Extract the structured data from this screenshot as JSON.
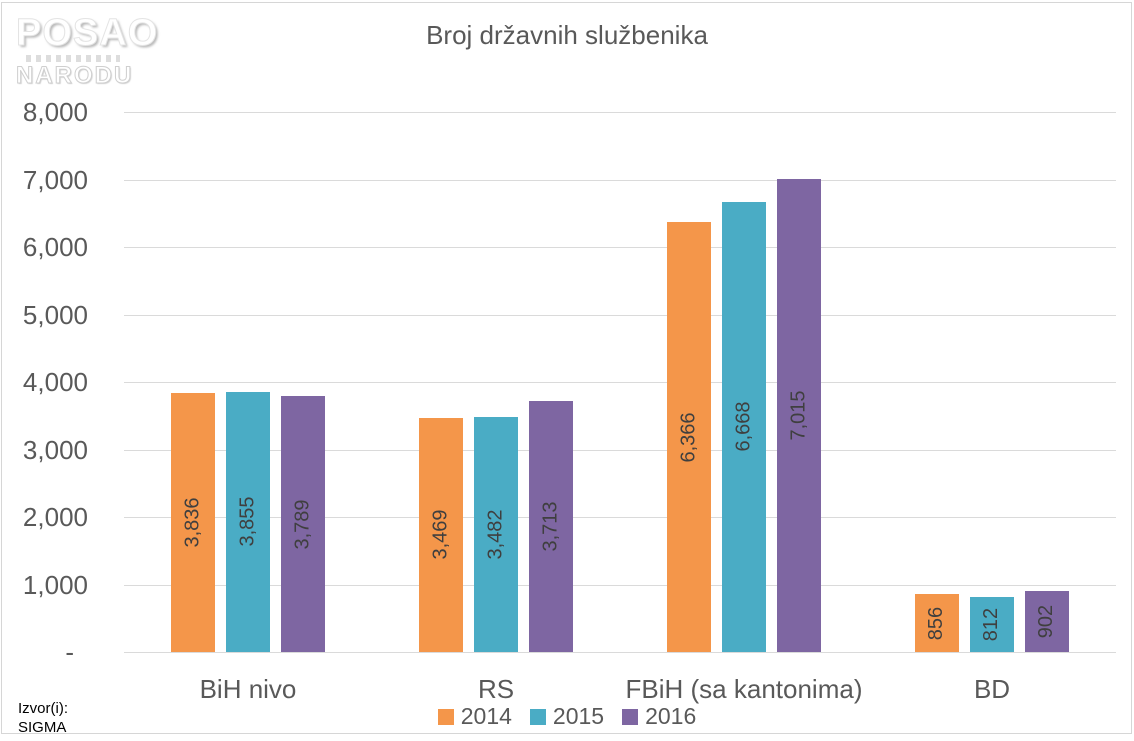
{
  "logo": {
    "line1": "POSAO",
    "line2": "NARODU"
  },
  "source": {
    "line1": "Izvor(i):",
    "line2": "SIGMA"
  },
  "chart_data": {
    "type": "bar",
    "title": "Broj državnih službenika",
    "categories": [
      "BiH nivo",
      "RS",
      "FBiH (sa kantonima)",
      "BD"
    ],
    "series": [
      {
        "name": "2014",
        "color": "#F4964A",
        "values": [
          3836,
          3469,
          6366,
          856
        ]
      },
      {
        "name": "2015",
        "color": "#4AACC5",
        "values": [
          3855,
          3482,
          6668,
          812
        ]
      },
      {
        "name": "2016",
        "color": "#7E66A2",
        "values": [
          3789,
          3713,
          7015,
          902
        ]
      }
    ],
    "data_labels": [
      [
        "3,836",
        "3,469",
        "6,366",
        "856"
      ],
      [
        "3,855",
        "3,482",
        "6,668",
        "812"
      ],
      [
        "3,789",
        "3,713",
        "7,015",
        "902"
      ]
    ],
    "xlabel": "",
    "ylabel": "",
    "ylim": [
      0,
      8000
    ],
    "ytick_step": 1000,
    "ytick_labels": [
      "-",
      "1,000",
      "2,000",
      "3,000",
      "4,000",
      "5,000",
      "6,000",
      "7,000",
      "8,000"
    ],
    "grid": true,
    "legend_position": "bottom",
    "colors": {
      "title_text": "#595959",
      "axis_text": "#595959",
      "bar_label_text": "#3F3F3F",
      "gridline": "#DADADA",
      "border": "#D6D6D6"
    }
  }
}
